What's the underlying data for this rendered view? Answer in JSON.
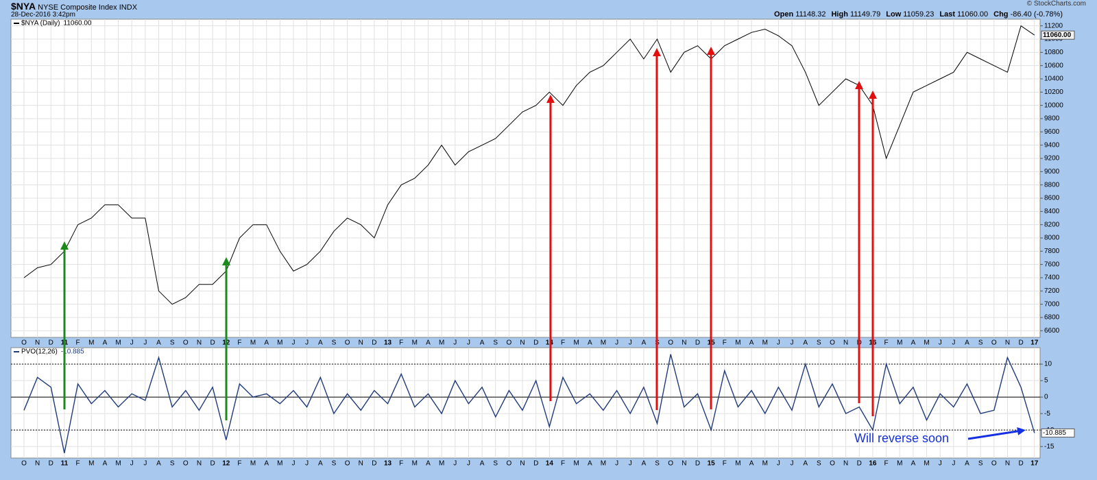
{
  "header": {
    "symbol": "$NYA",
    "name": "NYSE Composite Index",
    "exchange": "INDX",
    "date": "28-Dec-2016 3:42pm",
    "copyright": "© StockCharts.com",
    "quote": [
      {
        "label": "Open",
        "value": "11148.32"
      },
      {
        "label": "High",
        "value": "11149.79"
      },
      {
        "label": "Low",
        "value": "11059.23"
      },
      {
        "label": "Last",
        "value": "11060.00"
      },
      {
        "label": "Chg",
        "value": "-86.40 (-0.78%)"
      }
    ]
  },
  "annotation": "Will reverse soon",
  "chart_data": [
    {
      "type": "line",
      "categories": [
        "O",
        "N",
        "D",
        "11",
        "F",
        "M",
        "A",
        "M",
        "J",
        "J",
        "A",
        "S",
        "O",
        "N",
        "D",
        "12",
        "F",
        "M",
        "A",
        "M",
        "J",
        "J",
        "A",
        "S",
        "O",
        "N",
        "D",
        "13",
        "F",
        "M",
        "A",
        "M",
        "J",
        "J",
        "A",
        "S",
        "O",
        "N",
        "D",
        "14",
        "F",
        "M",
        "A",
        "M",
        "J",
        "J",
        "A",
        "S",
        "O",
        "N",
        "D",
        "15",
        "F",
        "M",
        "A",
        "M",
        "J",
        "J",
        "A",
        "S",
        "O",
        "N",
        "D",
        "16",
        "F",
        "M",
        "A",
        "M",
        "J",
        "J",
        "A",
        "S",
        "O",
        "N",
        "D",
        "17"
      ],
      "series": [
        {
          "name": "$NYA (Daily)",
          "last_label": "11060.00",
          "color": "#000000",
          "values": [
            7400,
            7550,
            7600,
            7800,
            8200,
            8300,
            8500,
            8500,
            8300,
            8300,
            7200,
            7000,
            7100,
            7300,
            7300,
            7500,
            8000,
            8200,
            8200,
            7800,
            7500,
            7600,
            7800,
            8100,
            8300,
            8200,
            8000,
            8500,
            8800,
            8900,
            9100,
            9400,
            9100,
            9300,
            9400,
            9500,
            9700,
            9900,
            10000,
            10200,
            10000,
            10300,
            10500,
            10600,
            10800,
            11000,
            10700,
            11000,
            10500,
            10800,
            10900,
            10700,
            10900,
            11000,
            11100,
            11150,
            11050,
            10900,
            10500,
            10000,
            10200,
            10400,
            10300,
            10000,
            9200,
            9700,
            10200,
            10300,
            10400,
            10500,
            10800,
            10700,
            10600,
            10500,
            11200,
            11060
          ]
        }
      ],
      "ylim": [
        6500,
        11300
      ],
      "yticks": [
        6600,
        6800,
        7000,
        7200,
        7400,
        7600,
        7800,
        8000,
        8200,
        8400,
        8600,
        8800,
        9000,
        9200,
        9400,
        9600,
        9800,
        10000,
        10200,
        10400,
        10600,
        10800,
        11000,
        11200
      ],
      "grid": true
    },
    {
      "type": "line",
      "categories": [
        "O",
        "N",
        "D",
        "11",
        "F",
        "M",
        "A",
        "M",
        "J",
        "J",
        "A",
        "S",
        "O",
        "N",
        "D",
        "12",
        "F",
        "M",
        "A",
        "M",
        "J",
        "J",
        "A",
        "S",
        "O",
        "N",
        "D",
        "13",
        "F",
        "M",
        "A",
        "M",
        "J",
        "J",
        "A",
        "S",
        "O",
        "N",
        "D",
        "14",
        "F",
        "M",
        "A",
        "M",
        "J",
        "J",
        "A",
        "S",
        "O",
        "N",
        "D",
        "15",
        "F",
        "M",
        "A",
        "M",
        "J",
        "J",
        "A",
        "S",
        "O",
        "N",
        "D",
        "16",
        "F",
        "M",
        "A",
        "M",
        "J",
        "J",
        "A",
        "S",
        "O",
        "N",
        "D",
        "17"
      ],
      "series": [
        {
          "name": "PVO(12,26)",
          "color": "#1f3a7a",
          "values": [
            -4,
            6,
            3,
            -17,
            4,
            -2,
            2,
            -3,
            1,
            -1,
            12,
            -3,
            2,
            -4,
            3,
            -13,
            4,
            0,
            1,
            -2,
            2,
            -3,
            6,
            -5,
            1,
            -4,
            2,
            -2,
            7,
            -3,
            1,
            -5,
            5,
            -2,
            3,
            -6,
            2,
            -4,
            5,
            -9,
            6,
            -2,
            1,
            -4,
            2,
            -5,
            3,
            -8,
            13,
            -3,
            1,
            -10,
            8,
            -3,
            2,
            -5,
            3,
            -4,
            10,
            -3,
            4,
            -5,
            -3,
            -10,
            10,
            -2,
            3,
            -7,
            1,
            -3,
            4,
            -5,
            -4,
            12,
            3,
            -10.885
          ]
        }
      ],
      "ylim": [
        -18.5,
        15
      ],
      "yticks": [
        10,
        5,
        0,
        -5,
        -10,
        -15
      ],
      "reference_lines": [
        {
          "value": 10,
          "style": "dashed"
        },
        {
          "value": 0,
          "style": "solid"
        },
        {
          "value": -10,
          "style": "dashed"
        }
      ],
      "grid": true
    }
  ]
}
